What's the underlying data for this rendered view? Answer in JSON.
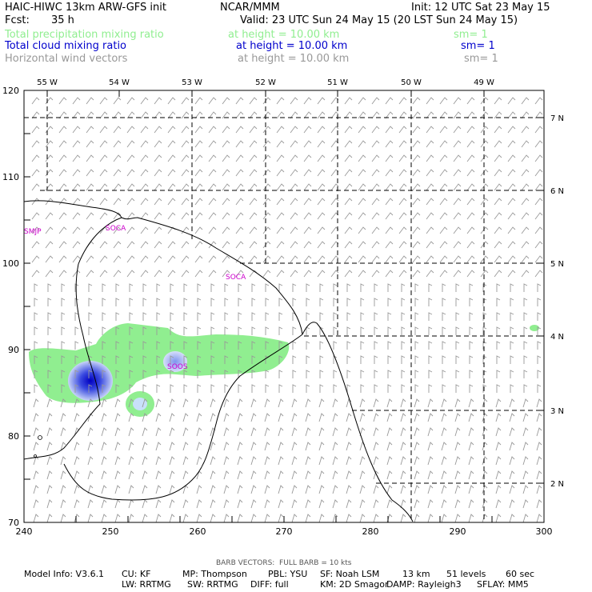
{
  "header": {
    "model_title": "HAIC-HIWC 13km ARW-GFS init",
    "center": "NCAR/MMM",
    "init": "Init: 12 UTC Sat 23 May 15",
    "fcst_label": "Fcst:",
    "fcst_value": "35 h",
    "valid": "Valid: 23 UTC Sun 24 May 15 (20 LST Sun 24 May 15)"
  },
  "fields": [
    {
      "name": "Total precipitation mixing ratio",
      "height": "at height = 10.00 km",
      "sm": "sm= 1",
      "color": "#90ee90"
    },
    {
      "name": "Total cloud mixing ratio",
      "height": "at height = 10.00 km",
      "sm": "sm= 1",
      "color": "#0000cc"
    },
    {
      "name": "Horizontal wind vectors",
      "height": "at height = 10.00 km",
      "sm": "sm= 1",
      "color": "#999999"
    }
  ],
  "top_axis": [
    "55 W",
    "54 W",
    "53 W",
    "52 W",
    "51 W",
    "50 W",
    "49 W"
  ],
  "right_axis": [
    "7 N",
    "6 N",
    "5 N",
    "4 N",
    "3 N",
    "2 N"
  ],
  "left_axis": [
    "120",
    "110",
    "100",
    "90",
    "80",
    "70"
  ],
  "bottom_axis": [
    "240",
    "250",
    "260",
    "270",
    "280",
    "290",
    "300"
  ],
  "stations": [
    "SMJP",
    "SOCA",
    "SOCA",
    "SOOS"
  ],
  "footer": {
    "barb": "BARB VECTORS:  FULL BARB = 10 kts",
    "line1": [
      "Model Info: V3.6.1",
      "CU: KF",
      "MP: Thompson",
      "PBL: YSU",
      "SF: Noah LSM",
      "13 km",
      "51 levels",
      "60 sec"
    ],
    "line2": [
      "LW: RRTMG",
      "SW: RRTMG",
      "DIFF: full",
      "KM: 2D Smagor",
      "DAMP: Rayleigh3",
      "SFLAY: MM5"
    ]
  }
}
